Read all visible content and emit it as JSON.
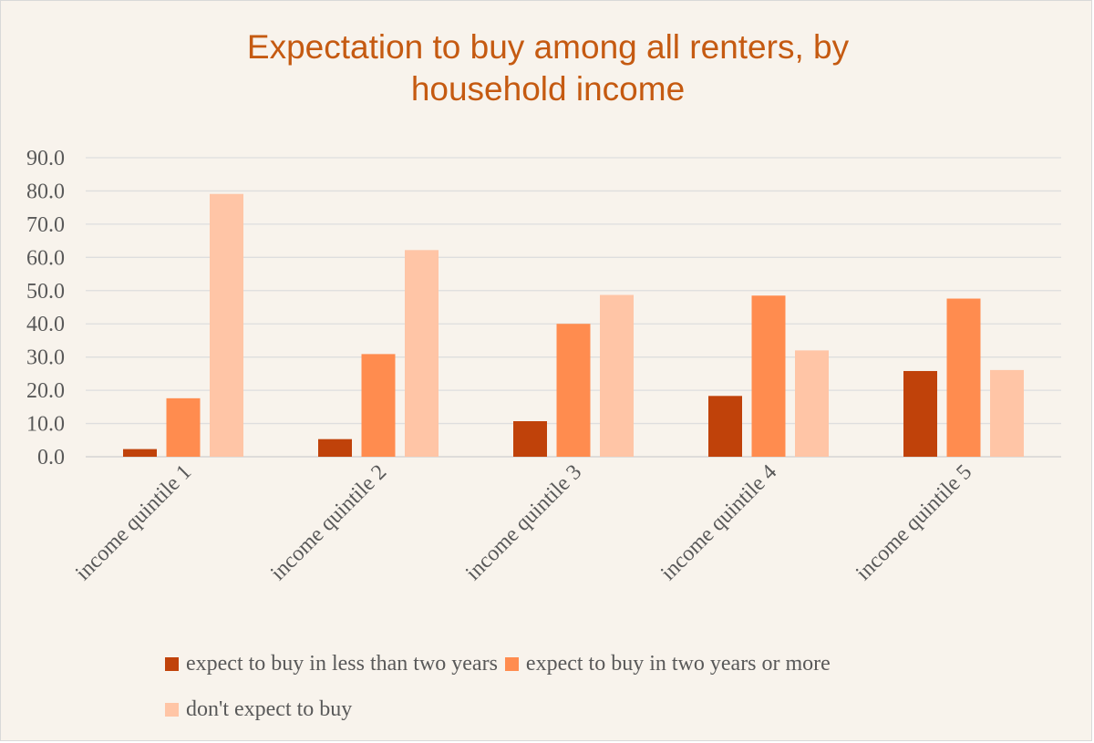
{
  "chart_data": {
    "type": "bar",
    "title": "Expectation to buy among all renters, by household income",
    "xlabel": "",
    "ylabel": "",
    "ylim": [
      0,
      90
    ],
    "yticks": [
      "0.0",
      "10.0",
      "20.0",
      "30.0",
      "40.0",
      "50.0",
      "60.0",
      "70.0",
      "80.0",
      "90.0"
    ],
    "grid": true,
    "legend_position": "bottom",
    "categories": [
      "income quintile 1",
      "income quintile 2",
      "income quintile 3",
      "income quintile 4",
      "income quintile 5"
    ],
    "series": [
      {
        "name": "expect to buy in less than two years",
        "color": "#c0420a",
        "values": [
          2.3,
          5.3,
          10.7,
          18.3,
          25.8
        ]
      },
      {
        "name": "expect to buy in two years or more",
        "color": "#ff8c4f",
        "values": [
          17.6,
          30.9,
          40.0,
          48.5,
          47.6
        ]
      },
      {
        "name": "don't expect to buy",
        "color": "#ffc5a6",
        "values": [
          79.1,
          62.2,
          48.7,
          32.0,
          26.1
        ]
      }
    ]
  }
}
